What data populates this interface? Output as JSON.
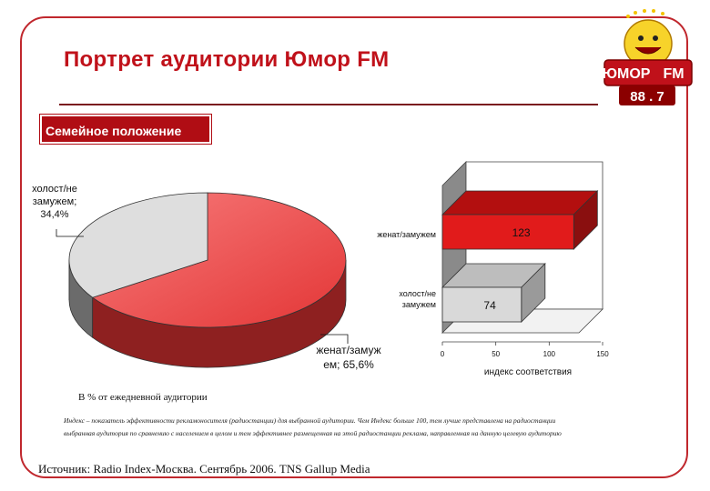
{
  "slide": {
    "title": "Портрет аудитории Юмор FM",
    "section_label": "Семейное положение",
    "base_note": "В % от ежедневной аудитории",
    "footnote_line1": "Индекс – показатель эффективности рекламоносителя (радиостанции) для выбранной аудитории. Чем Индекс больше 100, тем лучше представлена на радиостанции",
    "footnote_line2": "выбранная аудитория по сравнению с населением в целом и тем эффективнее размещенная на этой радиостанции реклама, направленная на данную целевую аудиторию",
    "source": "Источник: Radio Index-Москва. Сентябрь 2006. TNS Gallup Media"
  },
  "logo": {
    "top_text": "ЮМОР",
    "fm_text": "FM",
    "freq": "88 . 7"
  },
  "colors": {
    "accent": "#c0111a",
    "pie_main": "#ee4b4b",
    "pie_other": "#dcdcdc",
    "bar_main": "#e11b1b",
    "bar_other": "#d9d9d9"
  },
  "chart_data": [
    {
      "type": "pie",
      "labels": [
        "женат/замужем",
        "холост/не замужем"
      ],
      "values": [
        65.6,
        34.4
      ],
      "data_labels": [
        "женат/замуж\nем; 65,6%",
        "холост/не\nзамужем;\n34,4%"
      ]
    },
    {
      "type": "bar",
      "orientation": "horizontal",
      "categories": [
        "женат/замужем",
        "холост/не\nзамужем"
      ],
      "values": [
        123,
        74
      ],
      "xlabel": "индекс соответствия",
      "xlim": [
        0,
        150
      ],
      "ticks": [
        0,
        50,
        100,
        150
      ]
    }
  ]
}
